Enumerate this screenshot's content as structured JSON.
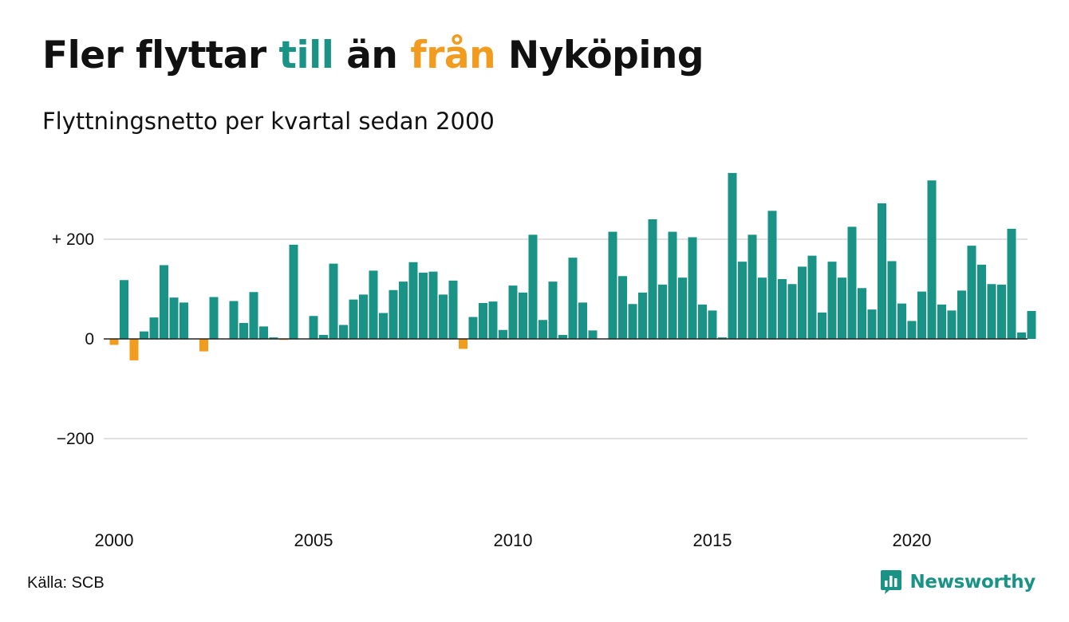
{
  "header": {
    "title_before": "Fler flyttar ",
    "title_till": "till",
    "title_middle": " än ",
    "title_fran": "från",
    "title_after": " Nyköping",
    "subtitle": "Flyttningsnetto per kvartal sedan 2000"
  },
  "colors": {
    "positive": "#1a9387",
    "negative": "#f29c1f",
    "text": "#111111",
    "grid": "#e0e0e0",
    "brand": "#1a9387"
  },
  "footer": {
    "source": "Källa: SCB",
    "brand_name": "Newsworthy",
    "brand_icon": "newsworthy-bar-chart-icon"
  },
  "chart_data": {
    "type": "bar",
    "x_start": "2000 Q1",
    "x_tick_labels": [
      "2000",
      "2005",
      "2010",
      "2015",
      "2020"
    ],
    "y_ticks": [
      200,
      0,
      -200
    ],
    "y_tick_labels": [
      "+ 200",
      "0",
      "−200"
    ],
    "ylim": [
      -370,
      360
    ],
    "grid": true,
    "title": "Fler flyttar till än från Nyköping",
    "subtitle": "Flyttningsnetto per kvartal sedan 2000",
    "categories": [
      "2000 Q1",
      "2000 Q2",
      "2000 Q3",
      "2000 Q4",
      "2001 Q1",
      "2001 Q2",
      "2001 Q3",
      "2001 Q4",
      "2002 Q1",
      "2002 Q2",
      "2002 Q3",
      "2002 Q4",
      "2003 Q1",
      "2003 Q2",
      "2003 Q3",
      "2003 Q4",
      "2004 Q1",
      "2004 Q2",
      "2004 Q3",
      "2004 Q4",
      "2005 Q1",
      "2005 Q2",
      "2005 Q3",
      "2005 Q4",
      "2006 Q1",
      "2006 Q2",
      "2006 Q3",
      "2006 Q4",
      "2007 Q1",
      "2007 Q2",
      "2007 Q3",
      "2007 Q4",
      "2008 Q1",
      "2008 Q2",
      "2008 Q3",
      "2008 Q4",
      "2009 Q1",
      "2009 Q2",
      "2009 Q3",
      "2009 Q4",
      "2010 Q1",
      "2010 Q2",
      "2010 Q3",
      "2010 Q4",
      "2011 Q1",
      "2011 Q2",
      "2011 Q3",
      "2011 Q4",
      "2012 Q1",
      "2012 Q2",
      "2012 Q3",
      "2012 Q4",
      "2013 Q1",
      "2013 Q2",
      "2013 Q3",
      "2013 Q4",
      "2014 Q1",
      "2014 Q2",
      "2014 Q3",
      "2014 Q4",
      "2015 Q1",
      "2015 Q2",
      "2015 Q3",
      "2015 Q4",
      "2016 Q1",
      "2016 Q2",
      "2016 Q3",
      "2016 Q4",
      "2017 Q1",
      "2017 Q2",
      "2017 Q3",
      "2017 Q4",
      "2018 Q1",
      "2018 Q2",
      "2018 Q3",
      "2018 Q4",
      "2019 Q1",
      "2019 Q2",
      "2019 Q3",
      "2019 Q4",
      "2020 Q1",
      "2020 Q2",
      "2020 Q3",
      "2020 Q4",
      "2021 Q1",
      "2021 Q2",
      "2021 Q3",
      "2021 Q4",
      "2022 Q1",
      "2022 Q2",
      "2022 Q3",
      "2022 Q4",
      "2023 Q1",
      "2023 Q2",
      "2023 Q3",
      "2023 Q4"
    ],
    "values": [
      -12,
      118,
      -43,
      15,
      43,
      148,
      83,
      73,
      0,
      -25,
      84,
      0,
      76,
      32,
      94,
      25,
      3,
      -2,
      189,
      0,
      46,
      8,
      151,
      28,
      79,
      89,
      137,
      52,
      98,
      115,
      154,
      133,
      135,
      89,
      117,
      -20,
      44,
      72,
      75,
      18,
      107,
      93,
      209,
      38,
      115,
      8,
      163,
      73,
      17,
      0,
      215,
      126,
      70,
      93,
      240,
      109,
      215,
      123,
      204,
      69,
      57,
      3,
      333,
      155,
      209,
      123,
      257,
      120,
      110,
      145,
      167,
      53,
      155,
      123,
      225,
      102,
      59,
      272,
      156,
      71,
      36,
      95,
      318,
      69,
      57,
      97,
      187,
      149,
      110,
      109,
      221,
      13,
      56,
      0,
      0,
      0
    ]
  }
}
